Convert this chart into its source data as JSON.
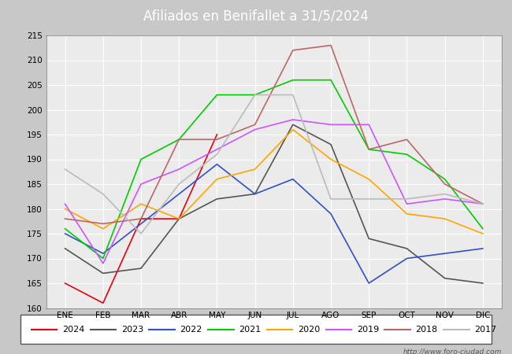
{
  "title": "Afiliados en Benifallet a 31/5/2024",
  "ylim": [
    160,
    215
  ],
  "yticks": [
    160,
    165,
    170,
    175,
    180,
    185,
    190,
    195,
    200,
    205,
    210,
    215
  ],
  "months": [
    "ENE",
    "FEB",
    "MAR",
    "ABR",
    "MAY",
    "JUN",
    "JUL",
    "AGO",
    "SEP",
    "OCT",
    "NOV",
    "DIC"
  ],
  "series": {
    "2024": {
      "color": "#e8000d",
      "data": [
        165,
        161,
        178,
        178,
        195,
        null,
        null,
        null,
        null,
        null,
        null,
        null
      ]
    },
    "2023": {
      "color": "#555555",
      "data": [
        172,
        167,
        168,
        178,
        182,
        183,
        197,
        193,
        174,
        172,
        166,
        165
      ]
    },
    "2022": {
      "color": "#3050c8",
      "data": [
        175,
        171,
        177,
        183,
        189,
        183,
        186,
        179,
        165,
        170,
        171,
        172
      ]
    },
    "2021": {
      "color": "#00cc00",
      "data": [
        176,
        170,
        190,
        194,
        203,
        203,
        206,
        206,
        192,
        191,
        186,
        176
      ]
    },
    "2020": {
      "color": "#ffa500",
      "data": [
        180,
        176,
        181,
        178,
        186,
        188,
        196,
        190,
        186,
        179,
        178,
        175
      ]
    },
    "2019": {
      "color": "#cc55ff",
      "data": [
        181,
        169,
        185,
        188,
        192,
        196,
        198,
        197,
        197,
        181,
        182,
        181
      ]
    },
    "2018": {
      "color": "#bb6666",
      "data": [
        178,
        177,
        178,
        194,
        194,
        197,
        212,
        213,
        192,
        194,
        185,
        181
      ]
    },
    "2017": {
      "color": "#bbbbbb",
      "data": [
        188,
        183,
        175,
        185,
        191,
        203,
        203,
        182,
        182,
        182,
        183,
        181
      ]
    }
  },
  "legend_order": [
    "2024",
    "2023",
    "2022",
    "2021",
    "2020",
    "2019",
    "2018",
    "2017"
  ],
  "watermark": "http://www.foro-ciudad.com",
  "title_bg": "#4472c4",
  "title_fg": "#ffffff",
  "plot_bg": "#ebebeb",
  "fig_bg": "#c8c8c8",
  "grid_color": "#ffffff",
  "grid_lw": 0.8
}
